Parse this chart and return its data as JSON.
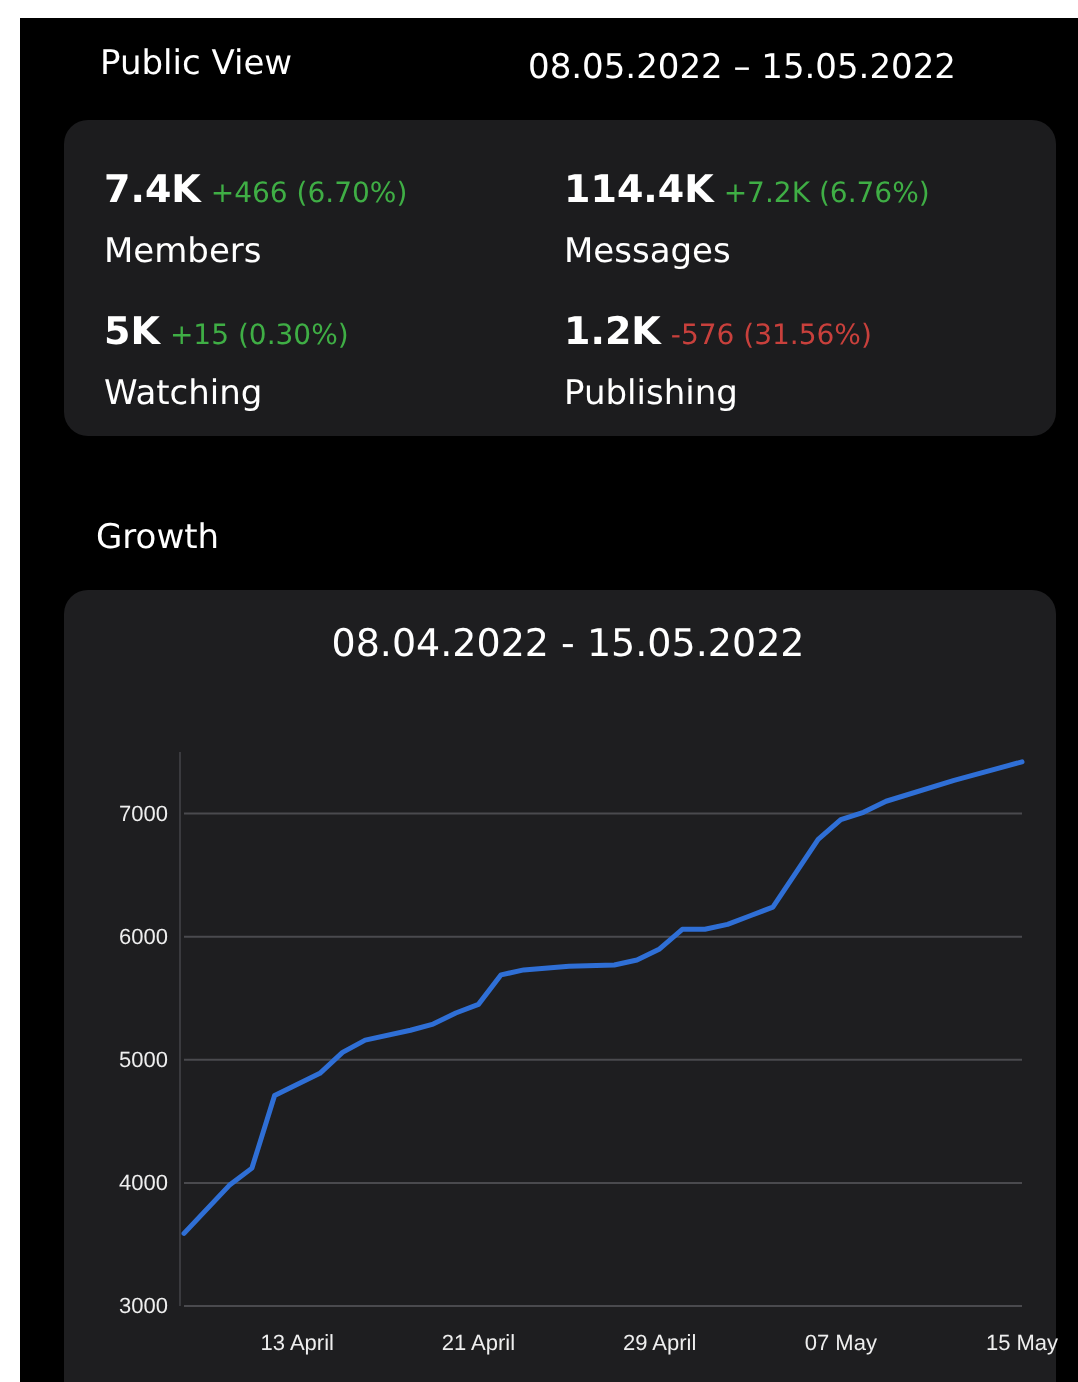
{
  "chart_data": [
    {
      "type": "other",
      "title": "Public View",
      "subtitle": "08.05.2022 – 15.05.2022",
      "annotations": [
        "7.4K",
        "+466 (6.70%)",
        "Members",
        "114.4K",
        "+7.2K (6.76%)",
        "Messages",
        "5K",
        "+15 (0.30%)",
        "Watching",
        "1.2K",
        "-576 (31.56%)",
        "Publishing"
      ]
    },
    {
      "type": "line",
      "title": "Growth",
      "subtitle": "08.04.2022 - 15.05.2022",
      "x": [
        "2022-04-08",
        "2022-04-10",
        "2022-04-11",
        "2022-04-12",
        "2022-04-14",
        "2022-04-15",
        "2022-04-16",
        "2022-04-18",
        "2022-04-19",
        "2022-04-20",
        "2022-04-21",
        "2022-04-22",
        "2022-04-23",
        "2022-04-25",
        "2022-04-27",
        "2022-04-28",
        "2022-04-29",
        "2022-04-30",
        "2022-05-01",
        "2022-05-02",
        "2022-05-03",
        "2022-05-04",
        "2022-05-06",
        "2022-05-07",
        "2022-05-08",
        "2022-05-09",
        "2022-05-12",
        "2022-05-15"
      ],
      "series": [
        {
          "color": "#2f6fd6",
          "values": [
            3590,
            3980,
            4120,
            4710,
            4890,
            5060,
            5160,
            5240,
            5290,
            5380,
            5450,
            5690,
            5730,
            5760,
            5770,
            5810,
            5900,
            6060,
            6060,
            6100,
            6170,
            6240,
            6790,
            6950,
            7010,
            7100,
            7270,
            7420
          ]
        }
      ],
      "xlim": [
        "2022-04-08",
        "2022-05-15"
      ],
      "xticks": [
        {
          "value": "2022-04-13",
          "label": "13 April"
        },
        {
          "value": "2022-04-21",
          "label": "21 April"
        },
        {
          "value": "2022-04-29",
          "label": "29 April"
        },
        {
          "value": "2022-05-07",
          "label": "07 May"
        },
        {
          "value": "2022-05-15",
          "label": "15 May"
        }
      ],
      "ylim": [
        3000,
        7500
      ],
      "yticks": [
        3000,
        4000,
        5000,
        6000,
        7000
      ],
      "grid": "y"
    }
  ]
}
